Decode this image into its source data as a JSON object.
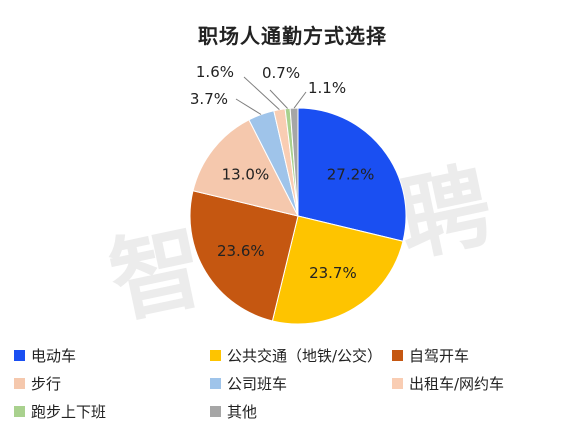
{
  "title": "职场人通勤方式选择",
  "watermark": "智联招聘",
  "chart_data": {
    "type": "pie",
    "title": "职场人通勤方式选择",
    "start_angle_deg": 0,
    "direction": "clockwise",
    "slices": [
      {
        "label": "电动车",
        "value": 27.2,
        "display": "27.2%",
        "color": "#1a4ff2",
        "label_inside": true
      },
      {
        "label": "公共交通（地铁/公交）",
        "value": 23.7,
        "display": "23.7%",
        "color": "#fec400",
        "label_inside": true
      },
      {
        "label": "自驾开车",
        "value": 23.6,
        "display": "23.6%",
        "color": "#c55711",
        "label_inside": true
      },
      {
        "label": "步行",
        "value": 13.0,
        "display": "13.0%",
        "color": "#f5c8ad",
        "label_inside": true
      },
      {
        "label": "公司班车",
        "value": 3.7,
        "display": "3.7%",
        "color": "#9fc4ea",
        "label_inside": false
      },
      {
        "label": "出租车/网约车",
        "value": 1.6,
        "display": "1.6%",
        "color": "#f9cdb3",
        "label_inside": false
      },
      {
        "label": "跑步上下班",
        "value": 0.7,
        "display": "0.7%",
        "color": "#a9d18e",
        "label_inside": false
      },
      {
        "label": "其他",
        "value": 1.1,
        "display": "1.1%",
        "color": "#a6a6a6",
        "label_inside": false
      }
    ],
    "legend": {
      "placement": "bottom",
      "columns": 3
    }
  }
}
